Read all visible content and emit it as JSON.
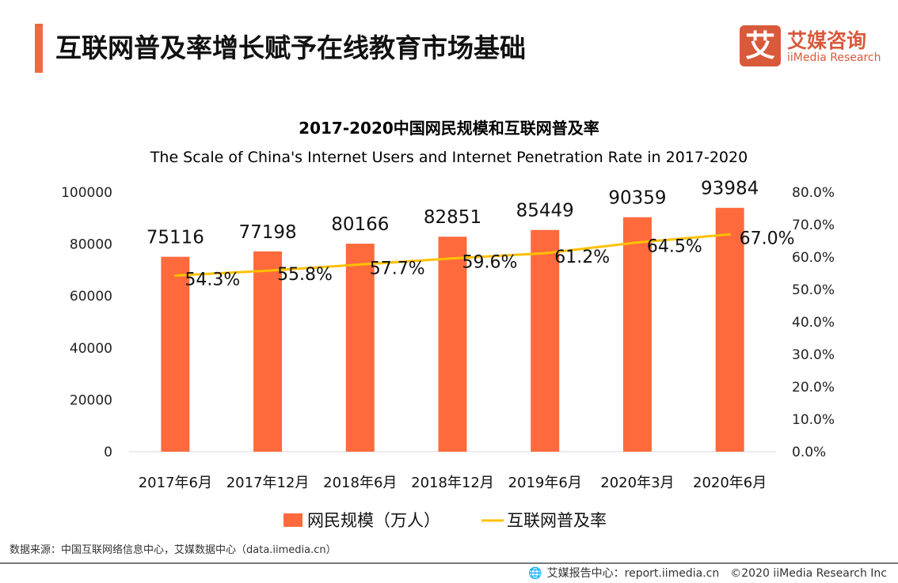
{
  "header": {
    "title": "互联网普及率增长赋予在线教育市场基础",
    "logo_cn": "艾媒咨询",
    "logo_en": "iiMedia Research",
    "logo_mark": "艾"
  },
  "colors": {
    "accent": "#f06a3c",
    "bar": "#ff6a3d",
    "line": "#ffc000",
    "logo": "#d9593b"
  },
  "chart_data": {
    "type": "bar+line",
    "title": "2017-2020中国网民规模和互联网普及率",
    "subtitle": "The Scale of China's Internet Users and Internet Penetration Rate in 2017-2020",
    "categories": [
      "2017年6月",
      "2017年12月",
      "2018年6月",
      "2018年12月",
      "2019年6月",
      "2020年3月",
      "2020年6月"
    ],
    "series": [
      {
        "name": "网民规模（万人）",
        "type": "bar",
        "axis": "left",
        "values": [
          75116,
          77198,
          80166,
          82851,
          85449,
          90359,
          93984
        ],
        "labels": [
          "75116",
          "77198",
          "80166",
          "82851",
          "85449",
          "90359",
          "93984"
        ]
      },
      {
        "name": "互联网普及率",
        "type": "line",
        "axis": "right",
        "values": [
          54.3,
          55.8,
          57.7,
          59.6,
          61.2,
          64.5,
          67.0
        ],
        "labels": [
          "54.3%",
          "55.8%",
          "57.7%",
          "59.6%",
          "61.2%",
          "64.5%",
          "67.0%"
        ]
      }
    ],
    "y_left": {
      "range": [
        0,
        100000
      ],
      "ticks": [
        "0",
        "20000",
        "40000",
        "60000",
        "80000",
        "100000"
      ]
    },
    "y_right": {
      "range": [
        0,
        80
      ],
      "ticks": [
        "0.0%",
        "10.0%",
        "20.0%",
        "30.0%",
        "40.0%",
        "50.0%",
        "60.0%",
        "70.0%",
        "80.0%"
      ]
    },
    "grid": false,
    "legend": "bottom"
  },
  "footer": {
    "source": "数据来源：中国互联网络信息中心，艾媒数据中心（data.iimedia.cn）",
    "report": "艾媒报告中心：report.iimedia.cn",
    "copyright": "©2020 iiMedia Research Inc"
  }
}
